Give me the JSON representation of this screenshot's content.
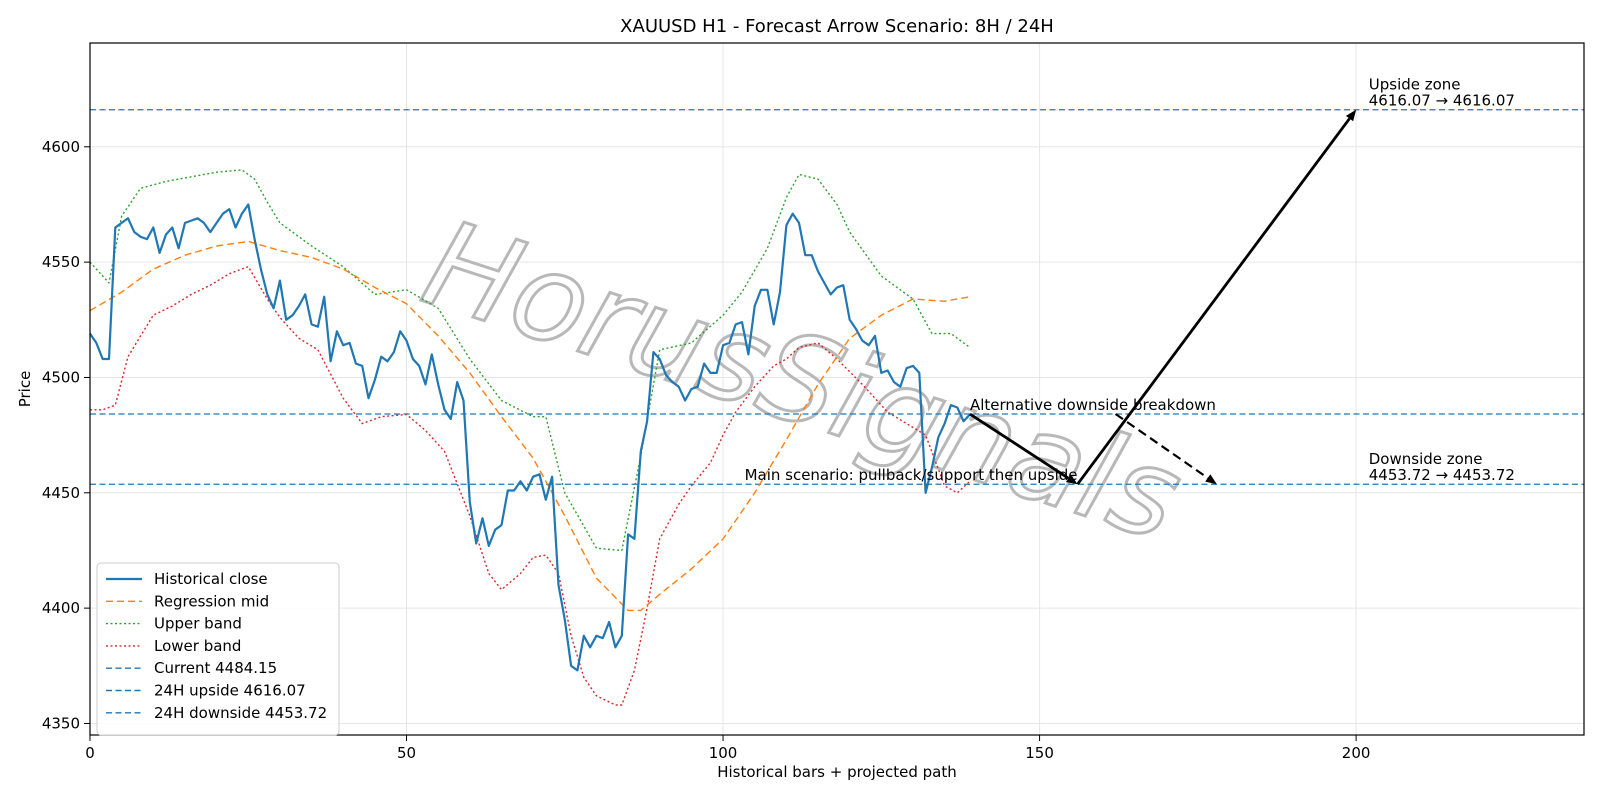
{
  "chart_data": {
    "type": "line",
    "title": "XAUUSD H1 - Forecast Arrow Scenario: 8H / 24H",
    "xlabel": "Historical bars + projected path",
    "ylabel": "Price",
    "xlim": [
      0,
      236
    ],
    "ylim": [
      4345,
      4645
    ],
    "xticks": [
      0,
      50,
      100,
      150,
      200
    ],
    "yticks": [
      4350,
      4400,
      4450,
      4500,
      4550,
      4600
    ],
    "grid": true,
    "legend_position": "lower-left",
    "watermark": "HorusSignals",
    "series": [
      {
        "name": "Historical close",
        "color": "#1f77b4",
        "style": "solid",
        "x": [
          0,
          1,
          2,
          3,
          4,
          5,
          6,
          7,
          8,
          9,
          10,
          11,
          12,
          13,
          14,
          15,
          16,
          17,
          18,
          19,
          20,
          21,
          22,
          23,
          24,
          25,
          26,
          27,
          28,
          29,
          30,
          31,
          32,
          33,
          34,
          35,
          36,
          37,
          38,
          39,
          40,
          41,
          42,
          43,
          44,
          45,
          46,
          47,
          48,
          49,
          50,
          51,
          52,
          53,
          54,
          55,
          56,
          57,
          58,
          59,
          60,
          61,
          62,
          63,
          64,
          65,
          66,
          67,
          68,
          69,
          70,
          71,
          72,
          73,
          74,
          75,
          76,
          77,
          78,
          79,
          80,
          81,
          82,
          83,
          84,
          85,
          86,
          87,
          88,
          89,
          90,
          91,
          92,
          93,
          94,
          95,
          96,
          97,
          98,
          99,
          100,
          101,
          102,
          103,
          104,
          105,
          106,
          107,
          108,
          109,
          110,
          111,
          112,
          113,
          114,
          115,
          116,
          117,
          118,
          119,
          120,
          121,
          122,
          123,
          124,
          125,
          126,
          127,
          128,
          129,
          130,
          131,
          132,
          133,
          134,
          135,
          136,
          137,
          138,
          139
        ],
        "values": [
          4519,
          4515,
          4508,
          4508,
          4565,
          4567,
          4569,
          4563,
          4561,
          4560,
          4565,
          4554,
          4562,
          4565,
          4556,
          4567,
          4568,
          4569,
          4567,
          4563,
          4567,
          4571,
          4573,
          4565,
          4571,
          4575,
          4560,
          4547,
          4536,
          4530,
          4542,
          4525,
          4527,
          4531,
          4536,
          4523,
          4522,
          4535,
          4507,
          4520,
          4514,
          4515,
          4506,
          4505,
          4491,
          4499,
          4509,
          4507,
          4511,
          4520,
          4516,
          4508,
          4505,
          4497,
          4510,
          4497,
          4486,
          4482,
          4498,
          4490,
          4446,
          4428,
          4439,
          4427,
          4434,
          4436,
          4451,
          4451,
          4455,
          4451,
          4457,
          4458,
          4447,
          4457,
          4410,
          4395,
          4375,
          4373,
          4388,
          4383,
          4388,
          4387,
          4394,
          4383,
          4388,
          4432,
          4430,
          4468,
          4481,
          4511,
          4508,
          4501,
          4498,
          4496,
          4490,
          4495,
          4496,
          4506,
          4502,
          4502,
          4514,
          4515,
          4523,
          4524,
          4510,
          4531,
          4538,
          4538,
          4523,
          4537,
          4566,
          4571,
          4567,
          4553,
          4553,
          4546,
          4541,
          4536,
          4539,
          4540,
          4525,
          4521,
          4516,
          4514,
          4518,
          4502,
          4503,
          4498,
          4496,
          4504,
          4505,
          4502,
          4450,
          4461,
          4474,
          4480,
          4488,
          4487,
          4481,
          4484
        ]
      },
      {
        "name": "Regression mid",
        "color": "#ff7f0e",
        "style": "dashed",
        "x": [
          0,
          5,
          10,
          15,
          20,
          25,
          30,
          35,
          40,
          45,
          50,
          55,
          60,
          65,
          70,
          75,
          80,
          85,
          87,
          90,
          95,
          100,
          105,
          110,
          115,
          120,
          125,
          130,
          135,
          139
        ],
        "values": [
          4529,
          4537,
          4547,
          4553,
          4557,
          4559,
          4555,
          4552,
          4547,
          4539,
          4532,
          4518,
          4502,
          4483,
          4465,
          4440,
          4413,
          4399,
          4399,
          4406,
          4417,
          4430,
          4450,
          4473,
          4497,
          4517,
          4527,
          4534,
          4533,
          4535
        ]
      },
      {
        "name": "Upper band",
        "color": "#2ca02c",
        "style": "dotted",
        "x": [
          0,
          3,
          5,
          8,
          12,
          16,
          20,
          24,
          26,
          28,
          30,
          35,
          40,
          45,
          50,
          55,
          60,
          65,
          70,
          72,
          75,
          80,
          84,
          87,
          90,
          95,
          100,
          103,
          107,
          110,
          112,
          115,
          118,
          120,
          125,
          130,
          133,
          136,
          139
        ],
        "values": [
          4550,
          4541,
          4570,
          4582,
          4585,
          4587,
          4589,
          4590,
          4586,
          4576,
          4567,
          4557,
          4548,
          4536,
          4538,
          4530,
          4508,
          4490,
          4483,
          4483,
          4450,
          4426,
          4425,
          4466,
          4512,
          4515,
          4527,
          4537,
          4556,
          4578,
          4588,
          4586,
          4575,
          4563,
          4544,
          4534,
          4519,
          4519,
          4513
        ]
      },
      {
        "name": "Lower band",
        "color": "#d62728",
        "style": "dotted",
        "x": [
          0,
          2,
          4,
          6,
          8,
          10,
          13,
          16,
          19,
          22,
          25,
          28,
          30,
          33,
          36,
          40,
          43,
          46,
          50,
          53,
          56,
          60,
          63,
          65,
          68,
          70,
          72,
          74,
          76,
          78,
          80,
          83,
          84,
          86,
          88,
          90,
          93,
          95,
          98,
          100,
          102,
          105,
          108,
          110,
          112,
          115,
          118,
          122,
          126,
          129,
          132,
          135,
          137,
          139
        ],
        "values": [
          4486,
          4486,
          4488,
          4509,
          4518,
          4527,
          4531,
          4536,
          4540,
          4545,
          4548,
          4534,
          4526,
          4517,
          4512,
          4491,
          4480,
          4483,
          4484,
          4477,
          4468,
          4440,
          4415,
          4408,
          4415,
          4422,
          4423,
          4415,
          4388,
          4370,
          4362,
          4358,
          4358,
          4373,
          4400,
          4430,
          4445,
          4453,
          4463,
          4475,
          4485,
          4496,
          4505,
          4508,
          4513,
          4515,
          4508,
          4497,
          4485,
          4480,
          4475,
          4453,
          4450,
          4455
        ]
      },
      {
        "name": "Current 4484.15",
        "color": "#1f77b4",
        "style": "dashed",
        "value": 4484.15
      },
      {
        "name": "24H upside 4616.07",
        "color": "#1f77b4",
        "style": "dashed",
        "value": 4616.07
      },
      {
        "name": "24H downside 4453.72",
        "color": "#1f77b4",
        "style": "dashed",
        "value": 4453.72
      }
    ],
    "arrows": [
      {
        "from": [
          139,
          4484.15
        ],
        "to": [
          156,
          4453.72
        ],
        "style": "solid"
      },
      {
        "from": [
          156,
          4453.72
        ],
        "to": [
          200,
          4616.07
        ],
        "style": "solid"
      },
      {
        "from": [
          162,
          4484.15
        ],
        "to": [
          178,
          4453.72
        ],
        "style": "dashed"
      }
    ],
    "annotations": [
      {
        "id": "upside-zone",
        "lines": [
          "Upside zone",
          "4616.07 → 4616.07"
        ],
        "x": 202,
        "y": 4616.07
      },
      {
        "id": "downside-zone",
        "lines": [
          "Downside zone",
          "4453.72 → 4453.72"
        ],
        "x": 202,
        "y": 4453.72
      },
      {
        "id": "alt-scenario",
        "lines": [
          "Alternative downside breakdown"
        ],
        "x": 139,
        "y": 4484.15
      },
      {
        "id": "main-scenario",
        "lines": [
          "Main scenario: pullback/support then upside"
        ],
        "x": 156,
        "y": 4453.72,
        "align": "end"
      }
    ]
  }
}
